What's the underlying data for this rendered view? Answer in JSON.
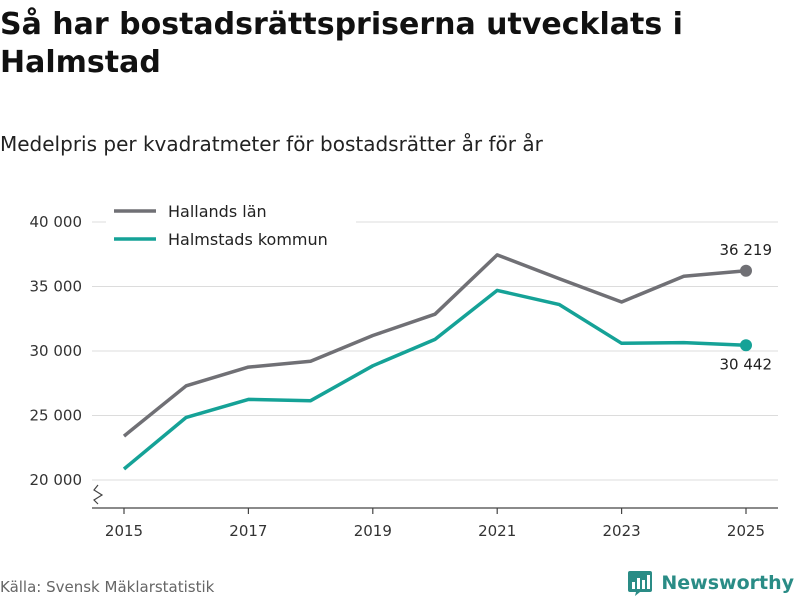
{
  "title": "Så har bostadsrättspriserna utvecklats i Halmstad",
  "subtitle": "Medelpris per kvadratmeter för bostadsrätter år för år",
  "source": "Källa: Svensk Mäklarstatistik",
  "brand": "Newsworthy",
  "colors": {
    "hallands": "#707075",
    "halmstad": "#15a297",
    "grid": "#dcdcdc",
    "axis": "#444444",
    "brand": "#2a8c86"
  },
  "chart_data": {
    "type": "line",
    "title": "Så har bostadsrättspriserna utvecklats i Halmstad",
    "subtitle": "Medelpris per kvadratmeter för bostadsrätter år för år",
    "xlabel": "",
    "ylabel": "",
    "x": [
      2015,
      2016,
      2017,
      2018,
      2019,
      2020,
      2021,
      2022,
      2023,
      2024,
      2025
    ],
    "xlim": [
      2015,
      2025
    ],
    "ylim": [
      20000,
      40000
    ],
    "yticks": [
      20000,
      25000,
      30000,
      35000,
      40000
    ],
    "ytick_labels": [
      "20 000",
      "25 000",
      "30 000",
      "35 000",
      "40 000"
    ],
    "xticks": [
      2015,
      2017,
      2019,
      2021,
      2023,
      2025
    ],
    "xtick_labels": [
      "2015",
      "2017",
      "2019",
      "2021",
      "2023",
      "2025"
    ],
    "grid": true,
    "axis_break": true,
    "legend_position": "top-left",
    "series": [
      {
        "key": "hallands",
        "name": "Hallands län",
        "values": [
          23400,
          27300,
          28750,
          29200,
          31200,
          32850,
          37450,
          35600,
          33800,
          35800,
          36219
        ],
        "end_label": "36 219",
        "end_label_position": "above"
      },
      {
        "key": "halmstad",
        "name": "Halmstads kommun",
        "values": [
          20850,
          24850,
          26250,
          26150,
          28850,
          30900,
          34700,
          33600,
          30600,
          30650,
          30442
        ],
        "end_label": "30 442",
        "end_label_position": "below"
      }
    ]
  }
}
